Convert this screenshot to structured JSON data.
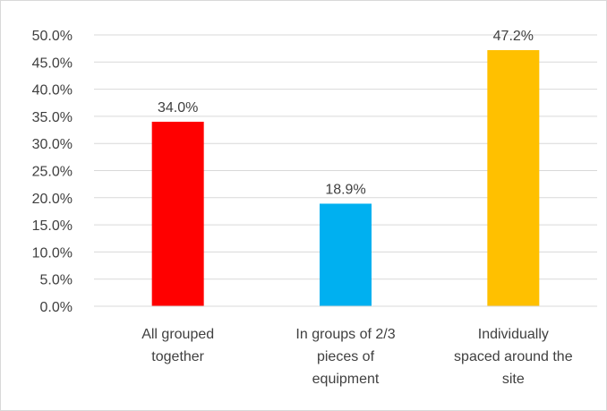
{
  "chart_data": {
    "type": "bar",
    "title": "",
    "xlabel": "",
    "ylabel": "",
    "categories": [
      [
        "All grouped",
        "together"
      ],
      [
        "In groups of 2/3",
        "pieces of",
        "equipment"
      ],
      [
        "Individually",
        "spaced around the",
        "site"
      ]
    ],
    "values": [
      34.0,
      18.9,
      47.2
    ],
    "data_labels": [
      "34.0%",
      "18.9%",
      "47.2%"
    ],
    "colors": [
      "#ff0000",
      "#00b0f0",
      "#ffc000"
    ],
    "ylim": [
      0,
      50
    ],
    "yticks": [
      {
        "value": 0,
        "label": "0.0%"
      },
      {
        "value": 5,
        "label": "5.0%"
      },
      {
        "value": 10,
        "label": "10.0%"
      },
      {
        "value": 15,
        "label": "15.0%"
      },
      {
        "value": 20,
        "label": "20.0%"
      },
      {
        "value": 25,
        "label": "25.0%"
      },
      {
        "value": 30,
        "label": "30.0%"
      },
      {
        "value": 35,
        "label": "35.0%"
      },
      {
        "value": 40,
        "label": "40.0%"
      },
      {
        "value": 45,
        "label": "45.0%"
      },
      {
        "value": 50,
        "label": "50.0%"
      }
    ],
    "grid": true,
    "legend": "none",
    "gridline_color": "#d9d9d9",
    "text_color": "#404040"
  }
}
